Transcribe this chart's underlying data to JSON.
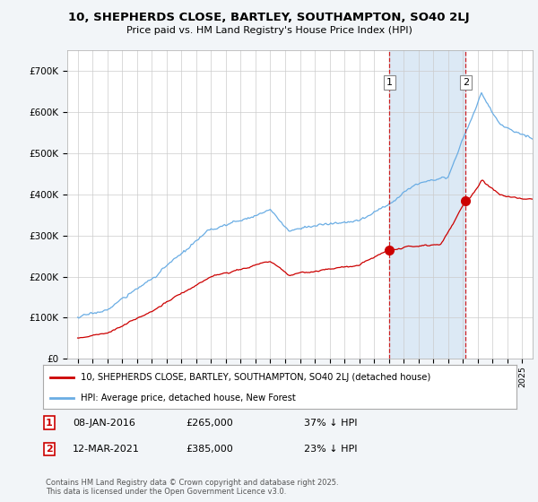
{
  "title_line1": "10, SHEPHERDS CLOSE, BARTLEY, SOUTHAMPTON, SO40 2LJ",
  "title_line2": "Price paid vs. HM Land Registry's House Price Index (HPI)",
  "ylim": [
    0,
    750000
  ],
  "yticks": [
    0,
    100000,
    200000,
    300000,
    400000,
    500000,
    600000,
    700000
  ],
  "ytick_labels": [
    "£0",
    "£100K",
    "£200K",
    "£300K",
    "£400K",
    "£500K",
    "£600K",
    "£700K"
  ],
  "hpi_color": "#6aade4",
  "hpi_fill_color": "#dce9f5",
  "price_color": "#cc0000",
  "vline_color": "#cc0000",
  "sale1_year": 2016.04,
  "sale2_year": 2021.19,
  "sale1_price_val": 265000,
  "sale2_price_val": 385000,
  "sale1_date": "08-JAN-2016",
  "sale1_price": "£265,000",
  "sale1_note": "37% ↓ HPI",
  "sale2_date": "12-MAR-2021",
  "sale2_price": "£385,000",
  "sale2_note": "23% ↓ HPI",
  "legend_label_price": "10, SHEPHERDS CLOSE, BARTLEY, SOUTHAMPTON, SO40 2LJ (detached house)",
  "legend_label_hpi": "HPI: Average price, detached house, New Forest",
  "footnote": "Contains HM Land Registry data © Crown copyright and database right 2025.\nThis data is licensed under the Open Government Licence v3.0.",
  "bg_color": "#f2f5f8",
  "plot_bg_color": "#ffffff",
  "grid_color": "#cccccc",
  "xlim_left": 1994.3,
  "xlim_right": 2025.7
}
